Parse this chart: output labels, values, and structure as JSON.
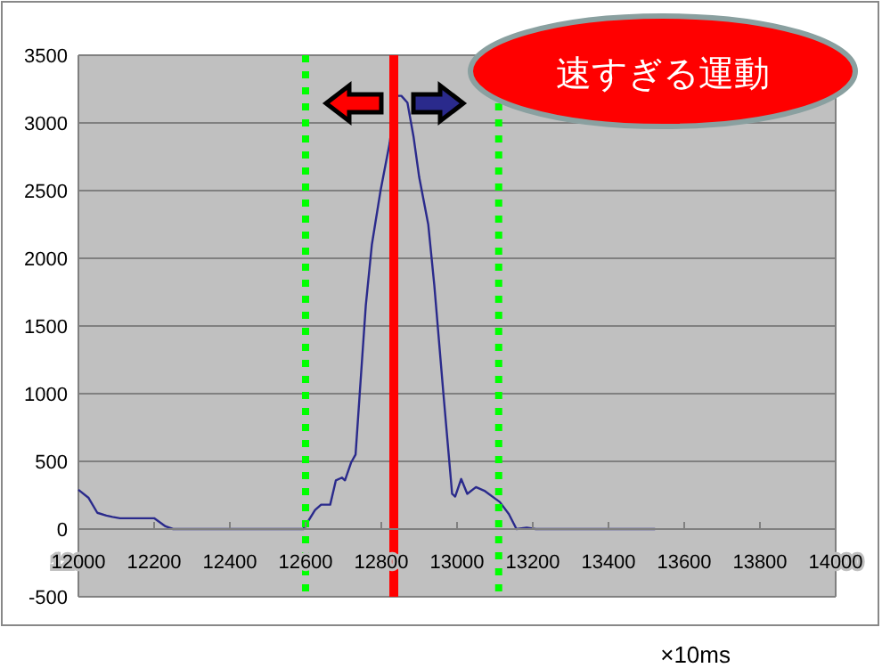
{
  "chart_data": {
    "type": "line",
    "x": [
      12000,
      12027,
      12050,
      12074,
      12090,
      12110,
      12200,
      12230,
      12250,
      12594,
      12625,
      12641,
      12665,
      12680,
      12696,
      12704,
      12720,
      12732,
      12743,
      12759,
      12775,
      12798,
      12822,
      12838,
      12853,
      12869,
      12885,
      12900,
      12924,
      12940,
      12964,
      12987,
      12995,
      13011,
      13027,
      13050,
      13074,
      13113,
      13137,
      13157,
      13184,
      13208,
      13523
    ],
    "series": [
      {
        "color": "#2a2a8c",
        "values": [
          290,
          230,
          120,
          100,
          90,
          80,
          80,
          20,
          0,
          0,
          140,
          180,
          180,
          360,
          380,
          360,
          490,
          550,
          1000,
          1650,
          2100,
          2500,
          2850,
          3200,
          3200,
          3150,
          2900,
          2600,
          2250,
          1800,
          1000,
          260,
          240,
          370,
          260,
          310,
          280,
          200,
          110,
          0,
          10,
          0,
          0
        ]
      }
    ],
    "xlim": [
      12000,
      14000
    ],
    "xticks": [
      12000,
      12200,
      12400,
      12600,
      12800,
      13000,
      13200,
      13400,
      13600,
      13800,
      14000
    ],
    "ylim": [
      -500,
      3500
    ],
    "yticks": [
      -500,
      0,
      500,
      1000,
      1500,
      2000,
      2500,
      3000,
      3500
    ],
    "grid": "y",
    "ref_lines": [
      {
        "axis": "x",
        "value": 12600,
        "color": "#00ff00",
        "line_style": "dotted"
      },
      {
        "axis": "x",
        "value": 13110,
        "color": "#00ff00",
        "line_style": "dotted"
      },
      {
        "axis": "x",
        "value": 12833,
        "color": "#ff0000",
        "line_style": "solid"
      }
    ],
    "annotations": [
      "速すぎる運動",
      "×10ms"
    ]
  }
}
